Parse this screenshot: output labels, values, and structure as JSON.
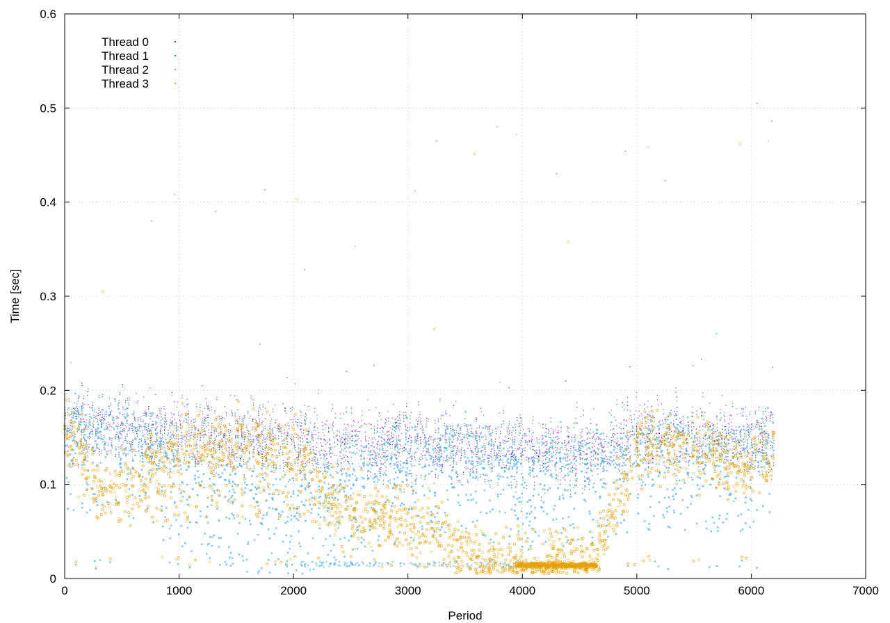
{
  "chart_data": {
    "type": "scatter",
    "title": "",
    "xlabel": "Period",
    "ylabel": "Time [sec]",
    "xlim": [
      0,
      7000
    ],
    "ylim": [
      0,
      0.6
    ],
    "xticks": [
      0,
      1000,
      2000,
      3000,
      4000,
      5000,
      6000,
      7000
    ],
    "yticks": [
      0,
      0.1,
      0.2,
      0.3,
      0.4,
      0.5,
      0.6
    ],
    "xtick_labels": [
      "0",
      "1000",
      "2000",
      "3000",
      "4000",
      "5000",
      "6000",
      "7000"
    ],
    "ytick_labels": [
      "0",
      "0.1",
      "0.2",
      "0.3",
      "0.4",
      "0.5",
      "0.6"
    ],
    "grid": true,
    "legend_position": "top-left",
    "x_max_data": 6200,
    "series": [
      {
        "name": "Thread 0",
        "color": "#9400d3",
        "marker": "dot",
        "description_points": [
          [
            0,
            0.165
          ],
          [
            500,
            0.16
          ],
          [
            1000,
            0.155
          ],
          [
            1500,
            0.15
          ],
          [
            2000,
            0.148
          ],
          [
            2500,
            0.145
          ],
          [
            3000,
            0.145
          ],
          [
            3500,
            0.14
          ],
          [
            4000,
            0.138
          ],
          [
            4500,
            0.135
          ],
          [
            5000,
            0.155
          ],
          [
            5500,
            0.152
          ],
          [
            6000,
            0.15
          ],
          [
            6200,
            0.148
          ]
        ]
      },
      {
        "name": "Thread 1",
        "color": "#009e73",
        "marker": "dot",
        "description_points": [
          [
            0,
            0.162
          ],
          [
            500,
            0.158
          ],
          [
            1000,
            0.152
          ],
          [
            1500,
            0.148
          ],
          [
            2000,
            0.145
          ],
          [
            2500,
            0.14
          ],
          [
            3000,
            0.142
          ],
          [
            3500,
            0.138
          ],
          [
            4000,
            0.135
          ],
          [
            4500,
            0.13
          ],
          [
            5000,
            0.15
          ],
          [
            5500,
            0.148
          ],
          [
            6000,
            0.147
          ],
          [
            6200,
            0.145
          ]
        ]
      },
      {
        "name": "Thread 2",
        "color": "#56b4e9",
        "marker": "x",
        "description_points": [
          [
            0,
            0.16
          ],
          [
            500,
            0.155
          ],
          [
            1000,
            0.12
          ],
          [
            1500,
            0.1
          ],
          [
            2000,
            0.08
          ],
          [
            2500,
            0.11
          ],
          [
            3000,
            0.13
          ],
          [
            3500,
            0.135
          ],
          [
            4000,
            0.12
          ],
          [
            4500,
            0.125
          ],
          [
            5000,
            0.14
          ],
          [
            5500,
            0.14
          ],
          [
            6000,
            0.14
          ],
          [
            6200,
            0.14
          ]
        ]
      },
      {
        "name": "Thread 3",
        "color": "#e69f00",
        "marker": "o",
        "description_points": [
          [
            0,
            0.16
          ],
          [
            300,
            0.1
          ],
          [
            500,
            0.09
          ],
          [
            1000,
            0.14
          ],
          [
            1500,
            0.14
          ],
          [
            2000,
            0.135
          ],
          [
            2400,
            0.07
          ],
          [
            3000,
            0.06
          ],
          [
            3700,
            0.015
          ],
          [
            4000,
            0.015
          ],
          [
            4300,
            0.014
          ],
          [
            4600,
            0.015
          ],
          [
            5000,
            0.14
          ],
          [
            5500,
            0.135
          ],
          [
            6000,
            0.12
          ],
          [
            6200,
            0.13
          ]
        ]
      }
    ],
    "sparse_outliers": [
      [
        760,
        0.38
      ],
      [
        960,
        0.408
      ],
      [
        1750,
        0.413
      ],
      [
        2030,
        0.403
      ],
      [
        2100,
        0.328
      ],
      [
        3060,
        0.412
      ],
      [
        3250,
        0.465
      ],
      [
        3580,
        0.451
      ],
      [
        3780,
        0.48
      ],
      [
        3950,
        0.472
      ],
      [
        4300,
        0.43
      ],
      [
        4400,
        0.358
      ],
      [
        4900,
        0.454
      ],
      [
        5100,
        0.458
      ],
      [
        5250,
        0.423
      ],
      [
        5900,
        0.462
      ],
      [
        6050,
        0.505
      ],
      [
        6150,
        0.465
      ],
      [
        6180,
        0.486
      ],
      [
        330,
        0.305
      ],
      [
        1320,
        0.39
      ],
      [
        2540,
        0.353
      ],
      [
        5700,
        0.26
      ],
      [
        3230,
        0.265
      ]
    ]
  }
}
